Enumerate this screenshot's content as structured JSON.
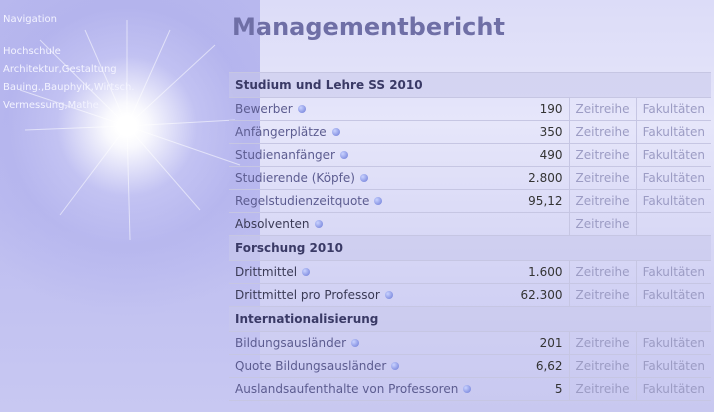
{
  "page": {
    "title": "Managementbericht"
  },
  "navigation": {
    "title": "Navigation",
    "items": [
      "Hochschule",
      "Architektur,Gestaltung",
      "Bauing.,Bauphyik,Wirtsch.",
      "Vermessung,Mathe"
    ]
  },
  "sections": [
    {
      "heading": "Studium und Lehre SS 2010",
      "rows": [
        {
          "label": "Bewerber",
          "value": "190",
          "link1": "Zeitreihe",
          "link2": "Fakultäten"
        },
        {
          "label": "Anfängerplätze",
          "value": "350",
          "link1": "Zeitreihe",
          "link2": "Fakultäten"
        },
        {
          "label": "Studienanfänger",
          "value": "490",
          "link1": "Zeitreihe",
          "link2": "Fakultäten"
        },
        {
          "label": "Studierende (Köpfe)",
          "value": "2.800",
          "link1": "Zeitreihe",
          "link2": "Fakultäten"
        },
        {
          "label": "Regelstudienzeitquote",
          "value": "95,12",
          "link1": "Zeitreihe",
          "link2": "Fakultäten"
        },
        {
          "label": "Absolventen",
          "value": "",
          "link1": "Zeitreihe",
          "link2": ""
        }
      ]
    },
    {
      "heading": "Forschung 2010",
      "rows": [
        {
          "label": "Drittmittel",
          "value": "1.600",
          "link1": "Zeitreihe",
          "link2": "Fakultäten"
        },
        {
          "label": "Drittmittel pro Professor",
          "value": "62.300",
          "link1": "Zeitreihe",
          "link2": "Fakultäten"
        }
      ]
    },
    {
      "heading": "Internationalisierung",
      "rows": [
        {
          "label": "Bildungsausländer",
          "value": "201",
          "link1": "Zeitreihe",
          "link2": "Fakultäten"
        },
        {
          "label": "Quote Bildungsausländer",
          "value": "6,62",
          "link1": "Zeitreihe",
          "link2": "Fakultäten"
        },
        {
          "label": "Auslandsaufenthalte von Professoren",
          "value": "5",
          "link1": "Zeitreihe",
          "link2": "Fakultäten"
        }
      ]
    }
  ]
}
